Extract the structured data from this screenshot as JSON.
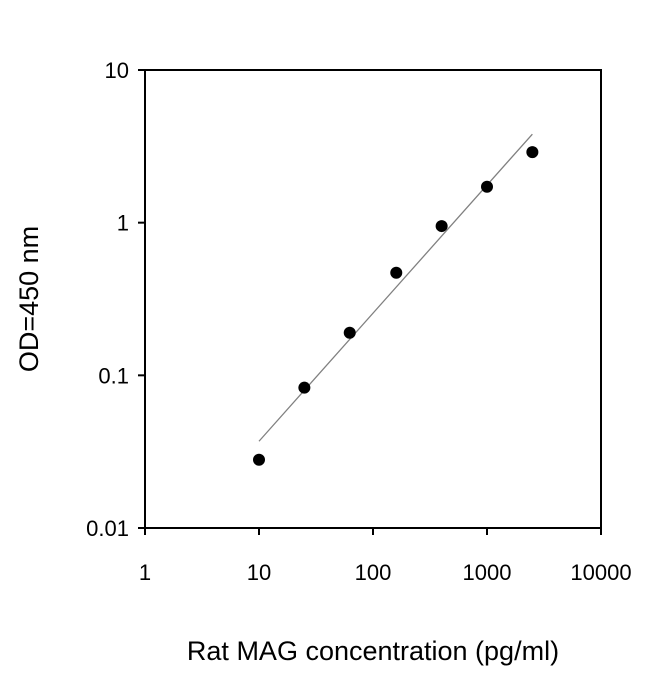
{
  "chart_data": {
    "type": "scatter",
    "title": "",
    "xlabel": "Rat MAG concentration (pg/ml)",
    "ylabel": "OD=450 nm",
    "xscale": "log",
    "yscale": "log",
    "xlim": [
      1,
      10000
    ],
    "ylim": [
      0.01,
      10
    ],
    "xticks": [
      "1",
      "10",
      "100",
      "1000",
      "10000"
    ],
    "yticks": [
      "0.01",
      "0.1",
      "1",
      "10"
    ],
    "grid": false,
    "points": {
      "x": [
        10,
        25,
        62.5,
        160,
        400,
        1000,
        2500
      ],
      "y": [
        0.028,
        0.083,
        0.19,
        0.47,
        0.95,
        1.72,
        2.9
      ]
    },
    "fit_line": {
      "x": [
        10,
        2500
      ],
      "y": [
        0.037,
        3.8
      ]
    },
    "colors": {
      "points": "#000000",
      "fit_line": "#808080",
      "axes": "#000000"
    }
  }
}
